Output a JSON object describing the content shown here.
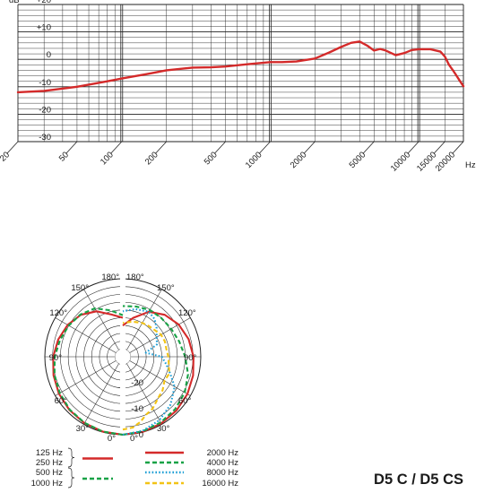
{
  "chart_data": [
    {
      "type": "line",
      "title": "",
      "xlabel": "Hz",
      "ylabel": "dB",
      "xscale": "log",
      "xlim": [
        20,
        20000
      ],
      "ylim": [
        -30,
        20
      ],
      "grid": true,
      "x_ticks": [
        20,
        50,
        100,
        200,
        500,
        1000,
        2000,
        5000,
        10000,
        15000,
        20000
      ],
      "x_tick_labels": [
        "20",
        "50",
        "100",
        "200",
        "500",
        "1000",
        "2000",
        "5000",
        "10000",
        "15000",
        "20000"
      ],
      "y_ticks": [
        20,
        10,
        0,
        -10,
        -20,
        -30
      ],
      "y_tick_labels": [
        "+20",
        "+10",
        "0",
        "-10",
        "-20",
        "-30"
      ],
      "series": [
        {
          "color": "#d42a2a",
          "x": [
            20,
            30,
            50,
            80,
            100,
            150,
            200,
            300,
            400,
            500,
            700,
            1000,
            1200,
            1500,
            2000,
            2500,
            3000,
            3500,
            4000,
            4500,
            5000,
            5500,
            6000,
            7000,
            8000,
            9000,
            10000,
            12000,
            14000,
            15000,
            16000,
            17000,
            18000,
            19000,
            20000
          ],
          "y": [
            -12,
            -11.5,
            -10,
            -8,
            -7,
            -5.3,
            -4,
            -3,
            -2.9,
            -2.6,
            -1.8,
            -1,
            -1,
            -0.8,
            0.3,
            2.5,
            4.5,
            6,
            6.5,
            5,
            3.2,
            3.8,
            3.2,
            1.5,
            2.3,
            3.4,
            3.7,
            3.7,
            2.8,
            1,
            -2,
            -4,
            -6,
            -8,
            -9.8
          ]
        }
      ]
    },
    {
      "type": "polar",
      "title": "",
      "angle_labels": [
        {
          "deg": 180,
          "text": "180°"
        },
        {
          "deg": 150,
          "text": "150°"
        },
        {
          "deg": 120,
          "text": "120°"
        },
        {
          "deg": 90,
          "text": "90°"
        },
        {
          "deg": 60,
          "text": "60°"
        },
        {
          "deg": 30,
          "text": "30°"
        },
        {
          "deg": 0,
          "text": "0°"
        }
      ],
      "radial_labels": [
        {
          "db": -20,
          "text": "-20"
        },
        {
          "db": -10,
          "text": "-10"
        },
        {
          "db": 0,
          "text": "0"
        }
      ],
      "rlim_db": [
        -30,
        0
      ],
      "left_series": [
        {
          "name": "125 Hz / 250 Hz",
          "color": "#d42a2a",
          "style": "solid",
          "angles": [
            0,
            15,
            30,
            45,
            60,
            75,
            90,
            105,
            120,
            135,
            150,
            165,
            180
          ],
          "db": [
            0,
            -0.2,
            -0.5,
            -1,
            -1.6,
            -2.4,
            -3.2,
            -4.3,
            -5.5,
            -7.2,
            -9.8,
            -13.2,
            -15
          ]
        },
        {
          "name": "500 Hz / 1000 Hz",
          "color": "#17a246",
          "style": "dashed",
          "angles": [
            0,
            15,
            30,
            45,
            60,
            75,
            90,
            105,
            120,
            135,
            150,
            165,
            180
          ],
          "db": [
            0,
            -0.2,
            -0.6,
            -1.2,
            -2,
            -2.8,
            -3.8,
            -5,
            -6,
            -7,
            -8.5,
            -11.5,
            -14
          ]
        }
      ],
      "right_series": [
        {
          "name": "2000 Hz",
          "color": "#d42a2a",
          "style": "solid",
          "angles": [
            0,
            15,
            30,
            45,
            60,
            75,
            90,
            105,
            120,
            135,
            150,
            165,
            180
          ],
          "db": [
            0,
            -0.1,
            -0.4,
            -0.8,
            -1.3,
            -2,
            -2.8,
            -3.8,
            -5.2,
            -7.2,
            -10,
            -14.5,
            -18
          ]
        },
        {
          "name": "4000 Hz",
          "color": "#17a246",
          "style": "dashed",
          "angles": [
            0,
            15,
            30,
            45,
            60,
            75,
            90,
            105,
            120,
            135,
            150,
            165,
            180
          ],
          "db": [
            0,
            -0.3,
            -0.8,
            -1.5,
            -2.5,
            -4,
            -6,
            -7.5,
            -8.5,
            -9,
            -9.2,
            -10,
            -10.5
          ]
        },
        {
          "name": "8000 Hz",
          "color": "#1f9fd6",
          "style": "dotted",
          "angles": [
            0,
            15,
            30,
            45,
            60,
            70,
            80,
            90,
            100,
            110,
            120,
            130,
            140,
            150,
            165,
            180
          ],
          "db": [
            0,
            -0.5,
            -1.8,
            -4,
            -7,
            -10.5,
            -13,
            -15,
            -21,
            -16,
            -15,
            -13,
            -11,
            -10,
            -11,
            -12.5
          ]
        },
        {
          "name": "16000 Hz",
          "color": "#f2c316",
          "style": "dashed",
          "angles": [
            0,
            8,
            15,
            22,
            30,
            40,
            50,
            60,
            70,
            80,
            90,
            100,
            110,
            120,
            130,
            140,
            150,
            165,
            180
          ],
          "db": [
            -2,
            -2.5,
            -4,
            -6,
            -7,
            -9,
            -10,
            -11.5,
            -11,
            -12,
            -12.5,
            -13,
            -12.8,
            -13,
            -14,
            -14.5,
            -15,
            -16,
            -17
          ]
        }
      ]
    }
  ],
  "legend": {
    "left": [
      {
        "label": "125 Hz"
      },
      {
        "label": "250 Hz"
      },
      {
        "label": "500 Hz"
      },
      {
        "label": "1000 Hz"
      }
    ],
    "right": [
      {
        "label": "2000 Hz",
        "color": "#d42a2a",
        "style": "solid"
      },
      {
        "label": "4000 Hz",
        "color": "#17a246",
        "style": "dashed"
      },
      {
        "label": "8000 Hz",
        "color": "#1f9fd6",
        "style": "dotted"
      },
      {
        "label": "16000 Hz",
        "color": "#f2c316",
        "style": "dashed"
      }
    ],
    "left_swatches": [
      {
        "color": "#d42a2a",
        "style": "solid"
      },
      {
        "color": "#17a246",
        "style": "dashed"
      }
    ]
  },
  "model_label": "D5 C / D5 CS"
}
